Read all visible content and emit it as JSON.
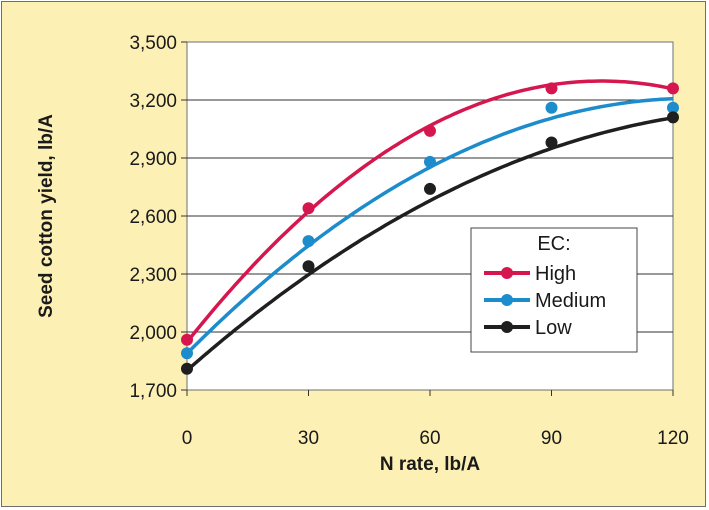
{
  "chart_data": {
    "type": "line",
    "xlabel": "N rate, lb/A",
    "ylabel": "Seed cotton yield, lb/A",
    "x": [
      0,
      30,
      60,
      90,
      120
    ],
    "x_tick_labels": [
      "0",
      "30",
      "60",
      "90",
      "120"
    ],
    "xlim": [
      0,
      120
    ],
    "ylim": [
      1700,
      3500
    ],
    "y_ticks": [
      1700,
      2000,
      2300,
      2600,
      2900,
      3200,
      3500
    ],
    "y_tick_labels": [
      "1,700",
      "2,000",
      "2,300",
      "2,600",
      "2,900",
      "3,200",
      "3,500"
    ],
    "grid": "horizontal",
    "legend": {
      "title": "EC:",
      "position": "right"
    },
    "series": [
      {
        "name": "High",
        "color": "#d6174f",
        "values": [
          1960,
          2640,
          3040,
          3260,
          3260
        ],
        "fit": [
          1940,
          2640,
          3065,
          3265,
          3265
        ]
      },
      {
        "name": "Medium",
        "color": "#1c8ccc",
        "values": [
          1890,
          2470,
          2880,
          3160,
          3160
        ],
        "fit": [
          1890,
          2445,
          2850,
          3110,
          3205
        ]
      },
      {
        "name": "Low",
        "color": "#1f1f1f",
        "values": [
          1810,
          2340,
          2740,
          2980,
          3110
        ],
        "fit": [
          1800,
          2300,
          2680,
          2945,
          3110
        ]
      }
    ]
  }
}
